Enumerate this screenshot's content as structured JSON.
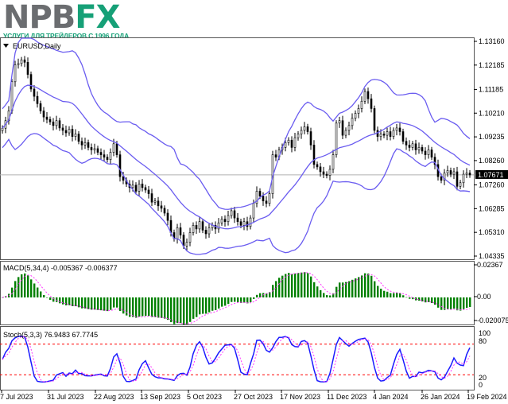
{
  "logo": {
    "brand_left": "NPB",
    "brand_right": "FX",
    "tagline": "УСЛУГИ ДЛЯ ТРЕЙДЕРОВ С 1996 ГОДА"
  },
  "colors": {
    "bands": "#6a5cf0",
    "bull": "#ffffff",
    "bear": "#000000",
    "macd_hist": "#008000",
    "macd_signal": "#ff33ff",
    "stoch_main": "#1a1aff",
    "stoch_signal": "#ff33ff",
    "levels": "#ff0000"
  },
  "chart_data": [
    {
      "type": "candlestick",
      "title": "EURUSD,Daily",
      "indicator": "Bollinger Bands",
      "price_ticks": [
        "1.13160",
        "1.12185",
        "1.11185",
        "1.10210",
        "1.09235",
        "1.08260",
        "1.07260",
        "1.06285",
        "1.05310",
        "1.04335"
      ],
      "current_price": "1.07671",
      "ylim": [
        1.04335,
        1.1316
      ],
      "x_tick_labels": [
        "7 Jul 2023",
        "31 Jul 2023",
        "22 Aug 2023",
        "13 Sep 2023",
        "5 Oct 2023",
        "27 Oct 2023",
        "17 Nov 2023",
        "11 Dec 2023",
        "4 Jan 2024",
        "26 Jan 2024",
        "19 Feb 2024"
      ],
      "close": [
        1.0959,
        1.099,
        1.103,
        1.115,
        1.122,
        1.1225,
        1.124,
        1.123,
        1.118,
        1.112,
        1.109,
        1.106,
        1.103,
        1.1005,
        1.0995,
        1.0985,
        1.097,
        1.099,
        1.096,
        1.095,
        1.094,
        1.0955,
        1.0925,
        1.0935,
        1.0905,
        1.089,
        1.09,
        1.088,
        1.087,
        1.0875,
        1.086,
        1.085,
        1.084,
        1.083,
        1.086,
        1.0895,
        1.085,
        1.076,
        1.0745,
        1.073,
        1.0715,
        1.0725,
        1.07,
        1.073,
        1.0715,
        1.0705,
        1.069,
        1.0655,
        1.066,
        1.064,
        1.063,
        1.061,
        1.058,
        1.053,
        1.0505,
        1.055,
        1.052,
        1.0475,
        1.049,
        1.053,
        1.056,
        1.0545,
        1.0575,
        1.054,
        1.0525,
        1.055,
        1.056,
        1.0545,
        1.057,
        1.0585,
        1.0575,
        1.06,
        1.062,
        1.059,
        1.0575,
        1.056,
        1.0575,
        1.0555,
        1.059,
        1.065,
        1.07,
        1.068,
        1.066,
        1.065,
        1.069,
        1.085,
        1.084,
        1.087,
        1.088,
        1.09,
        1.091,
        1.088,
        1.092,
        1.0935,
        1.095,
        1.0965,
        1.0945,
        1.089,
        1.081,
        1.08,
        1.078,
        1.077,
        1.0765,
        1.079,
        1.085,
        1.098,
        1.099,
        1.093,
        1.095,
        1.097,
        1.1,
        1.102,
        1.104,
        1.107,
        1.111,
        1.108,
        1.104,
        1.095,
        1.0925,
        1.0935,
        1.093,
        1.0945,
        1.0925,
        1.095,
        1.096,
        1.0945,
        1.0905,
        1.089,
        1.088,
        1.0895,
        1.087,
        1.088,
        1.0865,
        1.085,
        1.087,
        1.084,
        1.081,
        1.076,
        1.0745,
        1.0775,
        1.0785,
        1.077,
        1.078,
        1.072,
        1.0735,
        1.077,
        1.0775,
        1.0767
      ]
    },
    {
      "type": "bar",
      "title": "MACD(5,34,4) -0.005367 -0.006377",
      "y_ticks": [
        "0.02367",
        "0.00",
        "-0.020075"
      ],
      "ylim": [
        -0.020075,
        0.02367
      ]
    },
    {
      "type": "line",
      "title": "Stoch(5,3,3) 76.9483 67.7745",
      "y_ticks": [
        "100",
        "80",
        "20",
        "0"
      ],
      "levels": [
        80,
        20
      ],
      "ylim": [
        0,
        100
      ]
    }
  ]
}
